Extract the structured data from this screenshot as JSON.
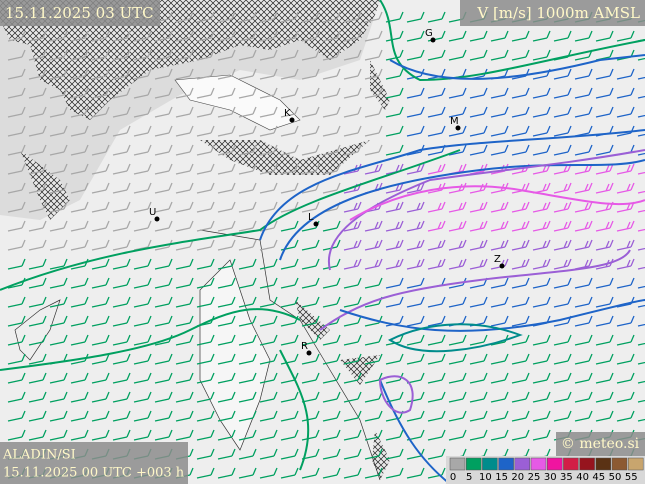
{
  "header": {
    "valid_time": "15.11.2025 03 UTC",
    "parameter": "V [m/s] 1000m AMSL"
  },
  "footer": {
    "model": "ALADIN/SI",
    "run": "15.11.2025 00 UTC +003 h",
    "credit": "© meteo.si"
  },
  "legend": {
    "labels": [
      "0",
      "5",
      "10",
      "15",
      "20",
      "25",
      "30",
      "35",
      "40",
      "45",
      "50",
      "55"
    ],
    "colors": [
      "#a8a8a8",
      "#00a060",
      "#008c8c",
      "#1e64c8",
      "#9b5fd6",
      "#e65ae6",
      "#f014a0",
      "#d21e46",
      "#96141e",
      "#5a3214",
      "#8c5a32",
      "#c8a56e"
    ]
  },
  "cities": [
    {
      "label": "G"
    },
    {
      "label": "K"
    },
    {
      "label": "M"
    },
    {
      "label": "U"
    },
    {
      "label": "L"
    },
    {
      "label": "Z"
    },
    {
      "label": "R"
    }
  ]
}
